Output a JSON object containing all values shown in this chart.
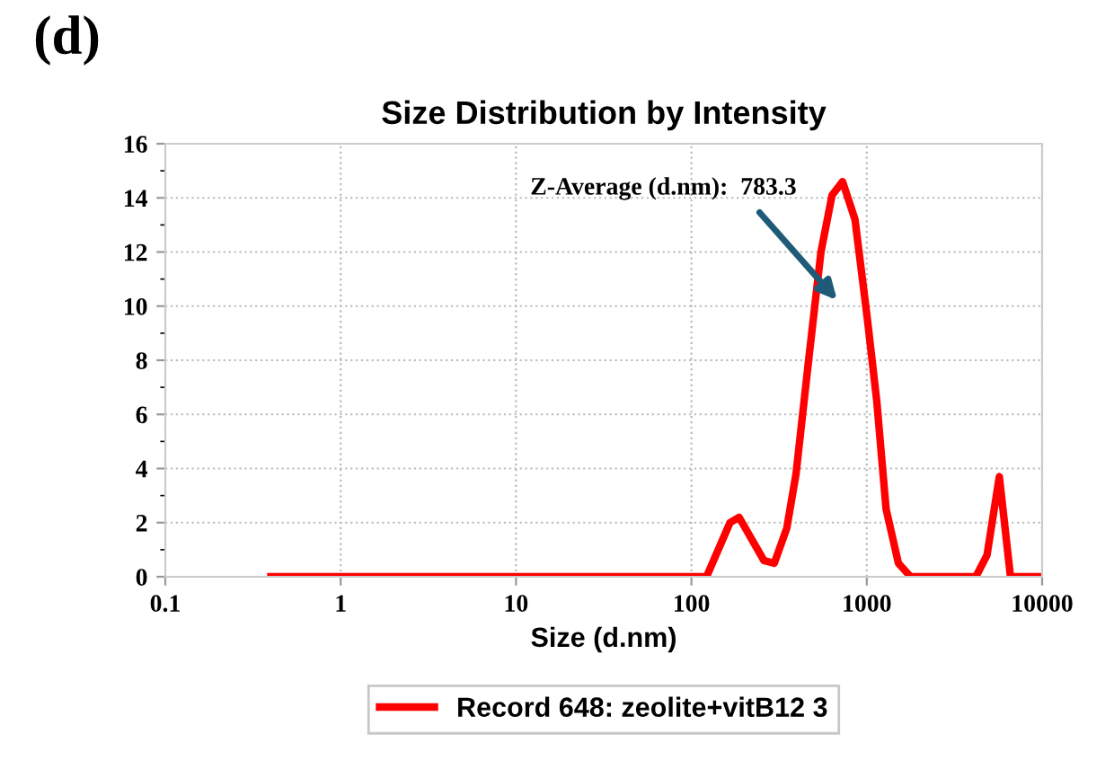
{
  "chart_data": {
    "type": "line",
    "title": "Size Distribution by Intensity",
    "xlabel": "Size (d.nm)",
    "annotations": [
      "Z-Average (d.nm):  783.3",
      "(d)"
    ],
    "series": [
      {
        "name": "Record 648: zeolite+vitB12 3",
        "color": "#ff0000",
        "x": [
          0.4,
          122,
          166,
          187,
          259,
          297,
          350,
          395,
          466,
          548,
          634,
          728,
          857,
          1009,
          1140,
          1289,
          1515,
          1780,
          4190,
          4850,
          5700,
          6600,
          10000
        ],
        "values": [
          0,
          0,
          2.0,
          2.2,
          0.6,
          0.5,
          1.8,
          3.8,
          8,
          12,
          14.1,
          14.6,
          13.2,
          9.5,
          6.5,
          2.5,
          0.5,
          0,
          0,
          0.8,
          3.7,
          0,
          0
        ]
      }
    ],
    "log": "x",
    "xlim": [
      0.1,
      10000
    ],
    "xticks": [
      0.1,
      1,
      10,
      100,
      1000,
      10000
    ],
    "ylim": [
      0,
      16
    ],
    "yticks": [
      0,
      2,
      4,
      6,
      8,
      10,
      12,
      14,
      16
    ],
    "grid": true,
    "legend": "bottom",
    "marker": "none",
    "line_style": "solid"
  }
}
